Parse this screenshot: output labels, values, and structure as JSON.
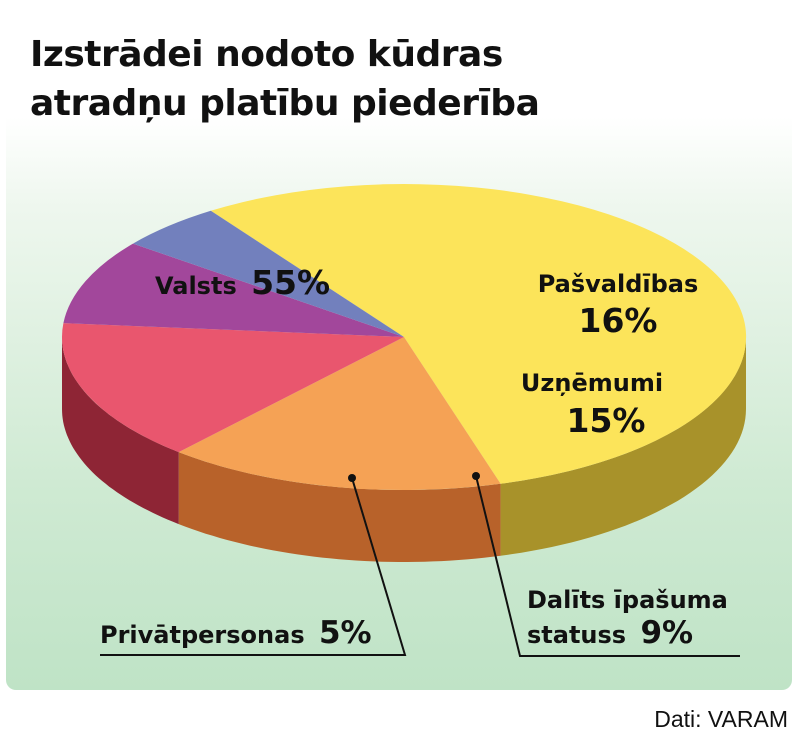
{
  "chart_data": {
    "type": "pie",
    "title": [
      "Izstrādei nodoto kūdras",
      "atradņu platību piederība"
    ],
    "slices": [
      {
        "label": "Valsts",
        "value_label": "55%",
        "value": 55,
        "color": "#fce45a",
        "side_color": "#a8922a"
      },
      {
        "label": "Pašvaldības",
        "value_label": "16%",
        "value": 16,
        "color": "#f5a255",
        "side_color": "#b8622a"
      },
      {
        "label": "Uzņēmumi",
        "value_label": "15%",
        "value": 15,
        "color": "#e9566e",
        "side_color": "#8e2535"
      },
      {
        "label": "Dalīts īpašuma statuss",
        "label_lines": [
          "Dalīts īpašuma",
          "statuss"
        ],
        "value_label": "9%",
        "value": 9,
        "color": "#a2479b",
        "side_color": "#681a55"
      },
      {
        "label": "Privātpersonas",
        "value_label": "5%",
        "value": 5,
        "color": "#7280bd",
        "side_color": "#3b4270"
      }
    ],
    "source": "Dati: VARAM"
  }
}
